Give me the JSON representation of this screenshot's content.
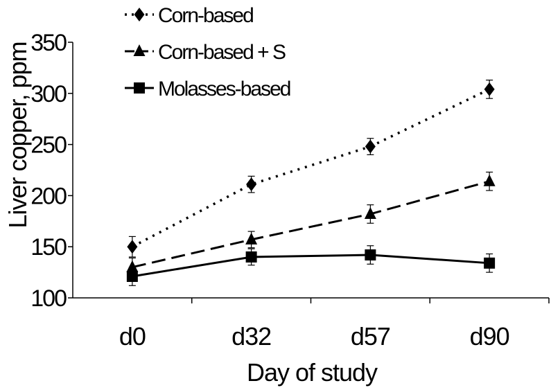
{
  "chart_data": {
    "type": "line",
    "title": "",
    "xlabel": "Day of study",
    "ylabel": "Liver copper, ppm",
    "categories": [
      "d0",
      "d32",
      "d57",
      "d90"
    ],
    "ylim": [
      100,
      350
    ],
    "yticks": [
      100,
      150,
      200,
      250,
      300,
      350
    ],
    "grid": false,
    "legend_position": "top-left",
    "error_bars": true,
    "series": [
      {
        "name": "Corn-based",
        "values": [
          150,
          211,
          248,
          304
        ],
        "errors": [
          10,
          8,
          8,
          9
        ],
        "color": "#000000",
        "line_style": "dotted",
        "marker": "diamond"
      },
      {
        "name": "Corn-based + S",
        "values": [
          130,
          157,
          182,
          214
        ],
        "errors": [
          9,
          8,
          9,
          9
        ],
        "color": "#000000",
        "line_style": "dashed",
        "marker": "triangle"
      },
      {
        "name": "Molasses-based",
        "values": [
          121,
          140,
          142,
          134
        ],
        "errors": [
          9,
          8,
          9,
          9
        ],
        "color": "#000000",
        "line_style": "solid",
        "marker": "square"
      }
    ]
  }
}
